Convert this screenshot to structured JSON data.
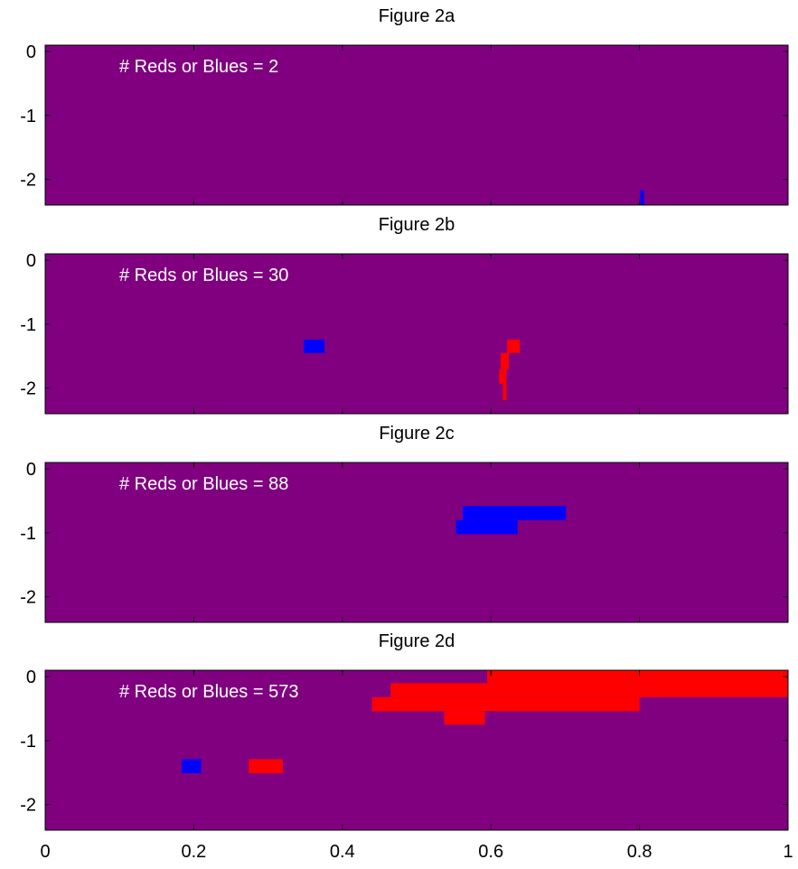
{
  "colors": {
    "background": "#800080",
    "red": "#ff0000",
    "blue": "#0000ff",
    "frame": "#000000"
  },
  "chart_data": [
    {
      "type": "heatmap",
      "title": "Figure 2a",
      "annotation": "# Reds or Blues = 2",
      "xlim": [
        0,
        1
      ],
      "ylim": [
        -2.4,
        0.1
      ],
      "y_ticks": [
        0,
        -1,
        -2
      ],
      "x_ticks": [],
      "regions": [
        {
          "color": "blue",
          "x0": 0.801,
          "x1": 0.806,
          "y0": -2.4,
          "y1": -2.17
        }
      ]
    },
    {
      "type": "heatmap",
      "title": "Figure 2b",
      "annotation": "# Reds or Blues = 30",
      "xlim": [
        0,
        1
      ],
      "ylim": [
        -2.4,
        0.1
      ],
      "y_ticks": [
        0,
        -1,
        -2
      ],
      "x_ticks": [],
      "regions": [
        {
          "color": "blue",
          "x0": 0.348,
          "x1": 0.376,
          "y0": -1.45,
          "y1": -1.24
        },
        {
          "color": "red",
          "x0": 0.622,
          "x1": 0.639,
          "y0": -1.45,
          "y1": -1.24
        },
        {
          "color": "red",
          "x0": 0.613,
          "x1": 0.624,
          "y0": -1.71,
          "y1": -1.45
        },
        {
          "color": "red",
          "x0": 0.611,
          "x1": 0.621,
          "y0": -1.93,
          "y1": -1.71
        },
        {
          "color": "red",
          "x0": 0.616,
          "x1": 0.621,
          "y0": -2.19,
          "y1": -1.93
        }
      ]
    },
    {
      "type": "heatmap",
      "title": "Figure 2c",
      "annotation": "# Reds or Blues = 88",
      "xlim": [
        0,
        1
      ],
      "ylim": [
        -2.4,
        0.1
      ],
      "y_ticks": [
        0,
        -1,
        -2
      ],
      "x_ticks": [],
      "regions": [
        {
          "color": "blue",
          "x0": 0.562,
          "x1": 0.701,
          "y0": -0.8,
          "y1": -0.58
        },
        {
          "color": "blue",
          "x0": 0.553,
          "x1": 0.636,
          "y0": -1.02,
          "y1": -0.8
        }
      ]
    },
    {
      "type": "heatmap",
      "title": "Figure 2d",
      "annotation": "# Reds or Blues = 573",
      "xlim": [
        0,
        1
      ],
      "ylim": [
        -2.4,
        0.1
      ],
      "y_ticks": [
        0,
        -1,
        -2
      ],
      "x_ticks": [
        0,
        0.2,
        0.4,
        0.6,
        0.8,
        1
      ],
      "regions": [
        {
          "color": "red",
          "x0": 0.595,
          "x1": 1.0,
          "y0": -0.1,
          "y1": 0.1
        },
        {
          "color": "red",
          "x0": 0.465,
          "x1": 1.0,
          "y0": -0.32,
          "y1": -0.1
        },
        {
          "color": "red",
          "x0": 0.44,
          "x1": 0.8,
          "y0": -0.54,
          "y1": -0.32
        },
        {
          "color": "red",
          "x0": 0.537,
          "x1": 0.592,
          "y0": -0.75,
          "y1": -0.54
        },
        {
          "color": "blue",
          "x0": 0.184,
          "x1": 0.21,
          "y0": -1.51,
          "y1": -1.29
        },
        {
          "color": "red",
          "x0": 0.274,
          "x1": 0.32,
          "y0": -1.51,
          "y1": -1.29
        }
      ]
    }
  ]
}
